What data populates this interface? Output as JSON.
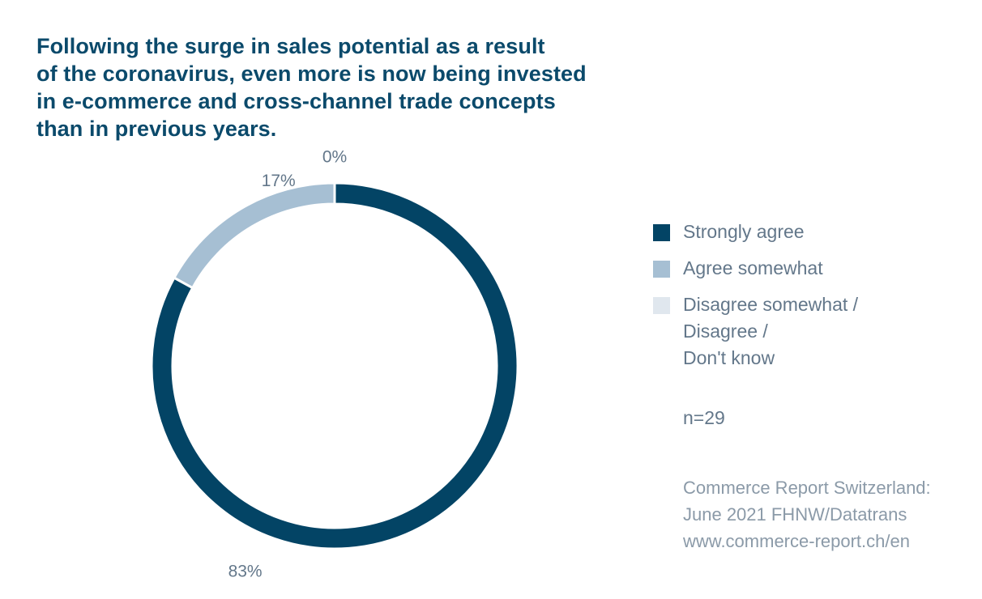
{
  "title_lines": [
    "Following the surge in sales potential as a result",
    "of the coronavirus, even more is now being invested",
    "in e-commerce and cross-channel trade concepts",
    "than in previous years."
  ],
  "chart_data": {
    "type": "pie",
    "donut": true,
    "unit": "%",
    "categories": [
      "Strongly agree",
      "Agree somewhat",
      "Disagree somewhat /\nDisagree /\nDon't know"
    ],
    "values": [
      83,
      17,
      0
    ],
    "data_labels": [
      "83%",
      "17%",
      "0%"
    ],
    "colors": [
      "#034465",
      "#a6bfd3",
      "#e0e7ee"
    ],
    "legend_position": "right"
  },
  "sample_size": "n=29",
  "source_lines": [
    "Commerce Report Switzerland:",
    "June 2021 FHNW/Datatrans",
    "www.commerce-report.ch/en"
  ]
}
